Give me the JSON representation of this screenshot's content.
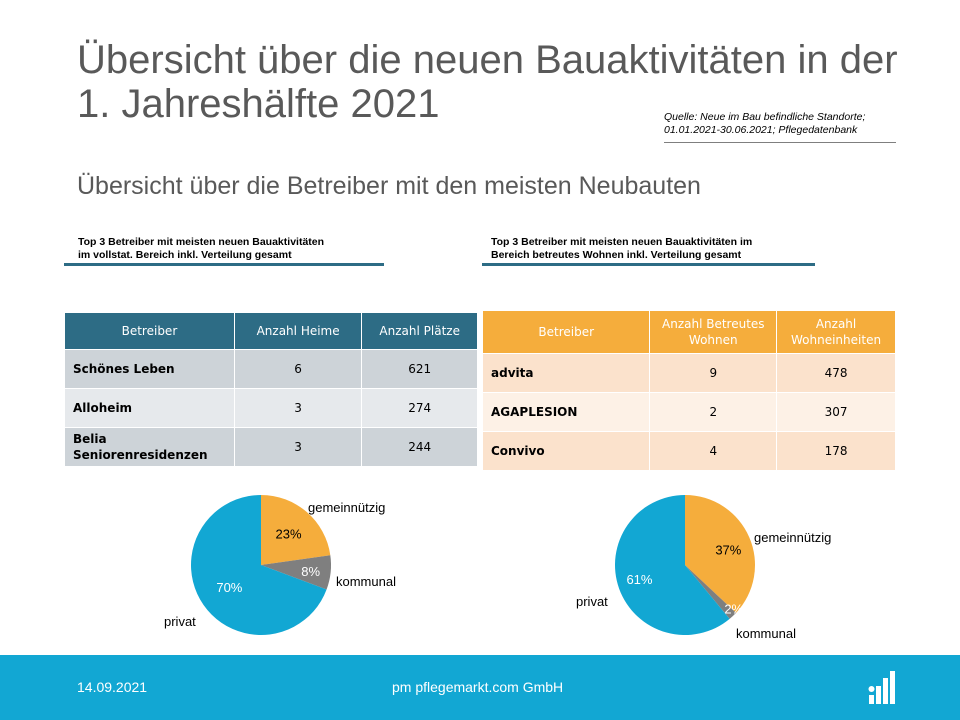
{
  "title": "Übersicht über die neuen Bauaktivitäten in der 1. Jahreshälfte 2021",
  "source_line1": "Quelle: Neue im Bau befindliche Standorte;",
  "source_line2": "01.01.2021-30.06.2021; Pflegedatenbank",
  "subtitle": "Übersicht über die Betreiber mit den meisten Neubauten",
  "left_caption_line1": "Top 3 Betreiber mit meisten neuen Bauaktivitäten",
  "left_caption_line2": "im vollstat. Bereich inkl. Verteilung gesamt",
  "right_caption_line1": "Top 3 Betreiber mit meisten neuen Bauaktivitäten im",
  "right_caption_line2": "Bereich betreutes Wohnen inkl. Verteilung gesamt",
  "colors": {
    "blue": "#2d6c85",
    "orange": "#f5ad3c",
    "cyan": "#12a7d3",
    "gray": "#7f7f7f"
  },
  "chart_data": [
    {
      "type": "table",
      "columns": [
        "Betreiber",
        "Anzahl Heime",
        "Anzahl Plätze"
      ],
      "rows": [
        [
          "Schönes Leben",
          "6",
          "621"
        ],
        [
          "Alloheim",
          "3",
          "274"
        ],
        [
          "Belia Seniorenresidenzen",
          "3",
          "244"
        ]
      ]
    },
    {
      "type": "table",
      "columns": [
        "Betreiber",
        "Anzahl Betreutes Wohnen",
        "Anzahl Wohneinheiten"
      ],
      "rows": [
        [
          "advita",
          "9",
          "478"
        ],
        [
          "AGAPLESION",
          "2",
          "307"
        ],
        [
          "Convivo",
          "4",
          "178"
        ]
      ]
    },
    {
      "type": "pie",
      "slices": [
        {
          "label": "gemeinnützig",
          "value": 23,
          "text": "23%",
          "color": "#f5ad3c"
        },
        {
          "label": "kommunal",
          "value": 8,
          "text": "8%",
          "color": "#7f7f7f"
        },
        {
          "label": "privat",
          "value": 70,
          "text": "70%",
          "color": "#12a7d3"
        }
      ]
    },
    {
      "type": "pie",
      "slices": [
        {
          "label": "gemeinnützig",
          "value": 37,
          "text": "37%",
          "color": "#f5ad3c"
        },
        {
          "label": "kommunal",
          "value": 2,
          "text": "2%",
          "color": "#7f7f7f"
        },
        {
          "label": "privat",
          "value": 61,
          "text": "61%",
          "color": "#12a7d3"
        }
      ]
    }
  ],
  "footer": {
    "date": "14.09.2021",
    "company": "pm pflegemarkt.com GmbH"
  }
}
